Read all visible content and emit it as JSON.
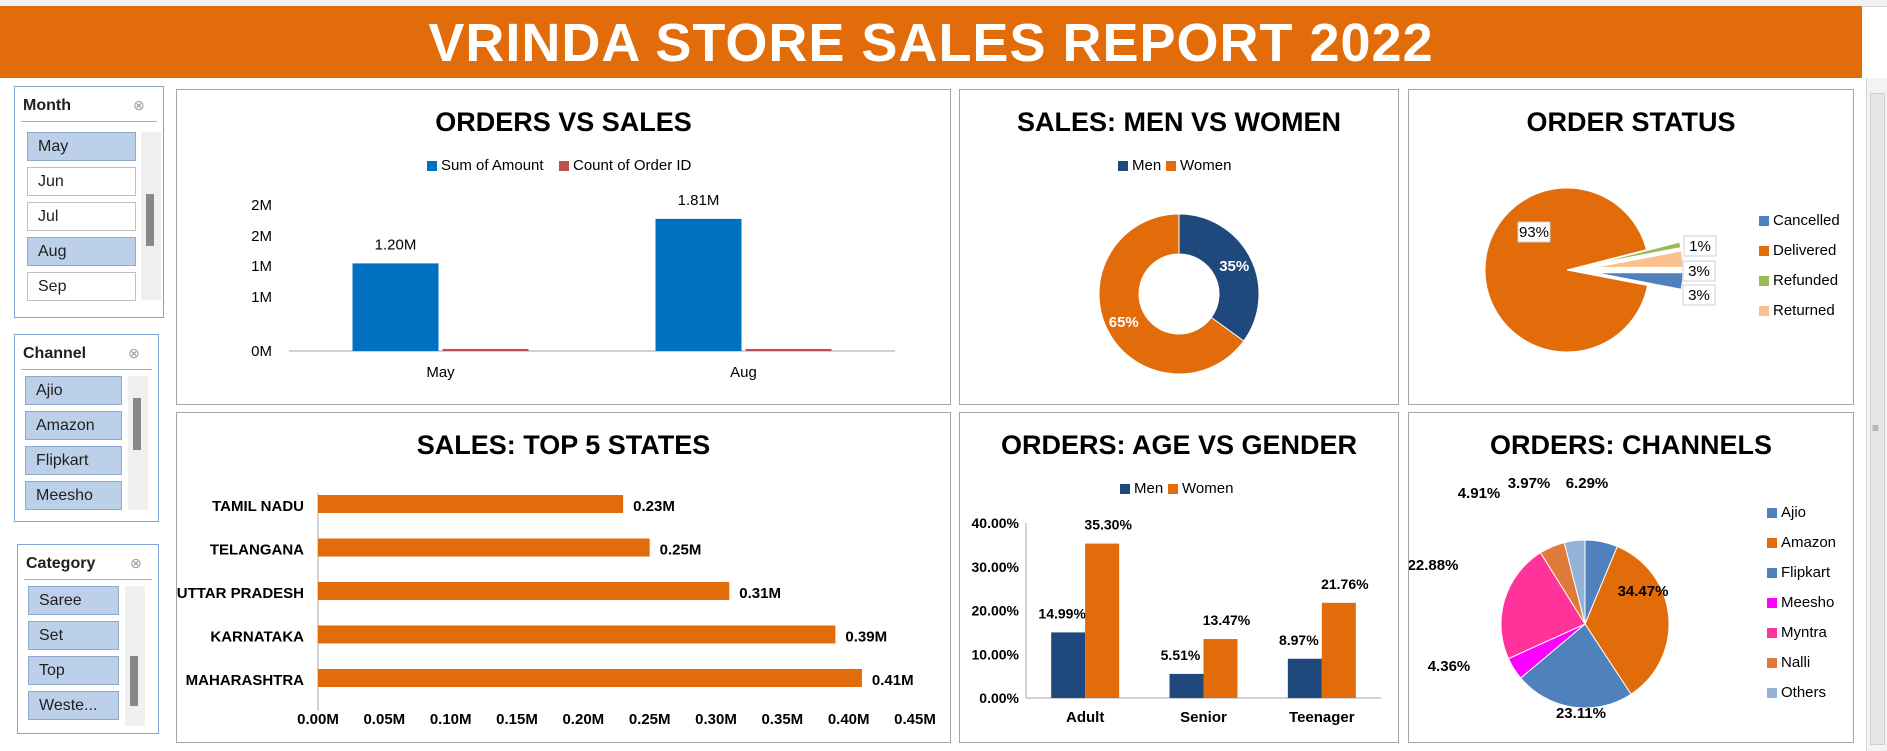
{
  "report_title": "VRINDA STORE SALES REPORT 2022",
  "slicers": {
    "month": {
      "title": "Month",
      "items": [
        {
          "label": "May",
          "selected": true
        },
        {
          "label": "Jun",
          "selected": false
        },
        {
          "label": "Jul",
          "selected": false
        },
        {
          "label": "Aug",
          "selected": true
        },
        {
          "label": "Sep",
          "selected": false
        }
      ]
    },
    "channel": {
      "title": "Channel",
      "items": [
        {
          "label": "Ajio",
          "selected": true
        },
        {
          "label": "Amazon",
          "selected": true
        },
        {
          "label": "Flipkart",
          "selected": true
        },
        {
          "label": "Meesho",
          "selected": true
        }
      ]
    },
    "category": {
      "title": "Category",
      "items": [
        {
          "label": "Saree",
          "selected": true
        },
        {
          "label": "Set",
          "selected": true
        },
        {
          "label": "Top",
          "selected": true
        },
        {
          "label": "Weste...",
          "selected": true
        }
      ]
    }
  },
  "colors": {
    "orange": "#e26b0a",
    "blue": "#0070c0",
    "navy": "#1f497d",
    "red_series": "#c0504d"
  },
  "chart_data": [
    {
      "id": "orders_vs_sales",
      "type": "bar",
      "title": "ORDERS VS SALES",
      "categories": [
        "May",
        "Aug"
      ],
      "series": [
        {
          "name": "Sum of Amount",
          "values": [
            1200000,
            1810000
          ],
          "labels": [
            "1.20M",
            "1.81M"
          ],
          "color": "#0070c0"
        },
        {
          "name": "Count of Order ID",
          "values": [
            5000,
            5000
          ],
          "color": "#c0504d"
        }
      ],
      "yticks": [
        "2M",
        "2M",
        "1M",
        "1M",
        "0M"
      ],
      "ylim": [
        0,
        2000000
      ],
      "legend": "top"
    },
    {
      "id": "sales_men_women",
      "type": "pie",
      "title": "SALES: MEN VS WOMEN",
      "donut": true,
      "slices": [
        {
          "name": "Men",
          "value": 35,
          "label": "35%",
          "color": "#1f497d"
        },
        {
          "name": "Women",
          "value": 65,
          "label": "65%",
          "color": "#e26b0a"
        }
      ],
      "legend": "top"
    },
    {
      "id": "order_status",
      "type": "pie",
      "title": "ORDER STATUS",
      "slices": [
        {
          "name": "Cancelled",
          "value": 3,
          "label": "3%",
          "color": "#4f81bd"
        },
        {
          "name": "Delivered",
          "value": 93,
          "label": "93%",
          "color": "#e26b0a"
        },
        {
          "name": "Refunded",
          "value": 1,
          "label": "1%",
          "color": "#9bbb59"
        },
        {
          "name": "Returned",
          "value": 3,
          "label": "3%",
          "color": "#fac090"
        }
      ],
      "legend": "right"
    },
    {
      "id": "top5_states",
      "type": "bar",
      "orientation": "horizontal",
      "title": "SALES: TOP 5 STATES",
      "categories": [
        "TAMIL NADU",
        "TELANGANA",
        "UTTAR PRADESH",
        "KARNATAKA",
        "MAHARASHTRA"
      ],
      "values": [
        0.23,
        0.25,
        0.31,
        0.39,
        0.41
      ],
      "labels": [
        "0.23M",
        "0.25M",
        "0.31M",
        "0.39M",
        "0.41M"
      ],
      "xticks": [
        "0.00M",
        "0.05M",
        "0.10M",
        "0.15M",
        "0.20M",
        "0.25M",
        "0.30M",
        "0.35M",
        "0.40M",
        "0.45M"
      ],
      "xlim": [
        0,
        0.45
      ],
      "color": "#e26b0a"
    },
    {
      "id": "age_vs_gender",
      "type": "bar",
      "title": "ORDERS: AGE VS GENDER",
      "categories": [
        "Adult",
        "Senior",
        "Teenager"
      ],
      "series": [
        {
          "name": "Men",
          "values": [
            14.99,
            5.51,
            8.97
          ],
          "labels": [
            "14.99%",
            "5.51%",
            "8.97%"
          ],
          "color": "#1f497d"
        },
        {
          "name": "Women",
          "values": [
            35.3,
            13.47,
            21.76
          ],
          "labels": [
            "35.30%",
            "13.47%",
            "21.76%"
          ],
          "color": "#e26b0a"
        }
      ],
      "yticks": [
        "0.00%",
        "10.00%",
        "20.00%",
        "30.00%",
        "40.00%"
      ],
      "ylim": [
        0,
        40
      ],
      "legend": "top"
    },
    {
      "id": "orders_channels",
      "type": "pie",
      "title": "ORDERS: CHANNELS",
      "slices": [
        {
          "name": "Ajio",
          "value": 6.29,
          "label": "6.29%",
          "color": "#4f81bd"
        },
        {
          "name": "Amazon",
          "value": 34.47,
          "label": "34.47%",
          "color": "#e26b0a"
        },
        {
          "name": "Flipkart",
          "value": 23.11,
          "label": "23.11%",
          "color": "#4f81bd"
        },
        {
          "name": "Meesho",
          "value": 4.36,
          "label": "4.36%",
          "color": "#ff00ff"
        },
        {
          "name": "Myntra",
          "value": 22.88,
          "label": "22.88%",
          "color": "#ff3399"
        },
        {
          "name": "Nalli",
          "value": 4.91,
          "label": "4.91%",
          "color": "#e07a3a"
        },
        {
          "name": "Others",
          "value": 3.97,
          "label": "3.97%",
          "color": "#95b3d7"
        }
      ],
      "legend": "right"
    }
  ]
}
